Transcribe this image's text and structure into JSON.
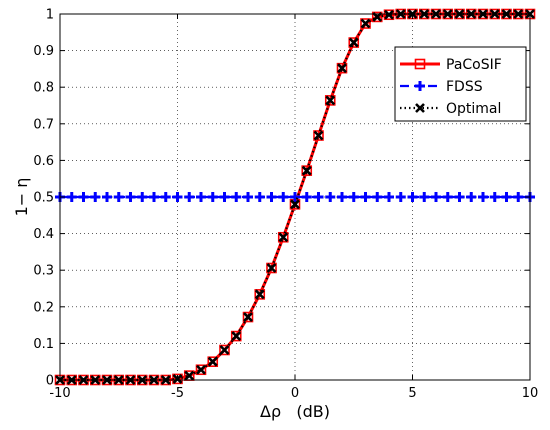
{
  "chart_data": {
    "type": "line",
    "title": "",
    "xlabel": "Δρ   (dB)",
    "ylabel": "1− η",
    "xlim": [
      -10,
      10
    ],
    "ylim": [
      0,
      1
    ],
    "x_ticks": [
      -10,
      -5,
      0,
      5,
      10
    ],
    "y_ticks": [
      0,
      0.1,
      0.2,
      0.3,
      0.4,
      0.5,
      0.6,
      0.7,
      0.8,
      0.9,
      1
    ],
    "grid": true,
    "grid_style": "dotted",
    "legend_position": "top-right",
    "x": [
      -10,
      -9.5,
      -9,
      -8.5,
      -8,
      -7.5,
      -7,
      -6.5,
      -6,
      -5.5,
      -5,
      -4.5,
      -4,
      -3.5,
      -3,
      -2.5,
      -2,
      -1.5,
      -1,
      -0.5,
      0,
      0.5,
      1,
      1.5,
      2,
      2.5,
      3,
      3.5,
      4,
      4.5,
      5,
      5.5,
      6,
      6.5,
      7,
      7.5,
      8,
      8.5,
      9,
      9.5,
      10
    ],
    "series": [
      {
        "name": "PaCoSIF",
        "color": "#ff0000",
        "line_style": "solid",
        "marker": "square",
        "values": [
          0,
          0,
          0,
          0,
          0,
          0,
          0,
          0,
          0,
          0,
          0.003,
          0.012,
          0.028,
          0.05,
          0.082,
          0.12,
          0.172,
          0.234,
          0.306,
          0.39,
          0.48,
          0.572,
          0.668,
          0.764,
          0.852,
          0.922,
          0.974,
          0.992,
          0.998,
          1,
          1,
          1,
          1,
          1,
          1,
          1,
          1,
          1,
          1,
          1,
          1
        ]
      },
      {
        "name": "FDSS",
        "color": "#0000ff",
        "line_style": "dashed",
        "marker": "plus",
        "values": [
          0.5,
          0.5,
          0.5,
          0.5,
          0.5,
          0.5,
          0.5,
          0.5,
          0.5,
          0.5,
          0.5,
          0.5,
          0.5,
          0.5,
          0.5,
          0.5,
          0.5,
          0.5,
          0.5,
          0.5,
          0.5,
          0.5,
          0.5,
          0.5,
          0.5,
          0.5,
          0.5,
          0.5,
          0.5,
          0.5,
          0.5,
          0.5,
          0.5,
          0.5,
          0.5,
          0.5,
          0.5,
          0.5,
          0.5,
          0.5,
          0.5
        ]
      },
      {
        "name": "Optimal",
        "color": "#000000",
        "line_style": "dotted",
        "marker": "x",
        "values": [
          0,
          0,
          0,
          0,
          0,
          0,
          0,
          0,
          0,
          0,
          0.003,
          0.012,
          0.028,
          0.05,
          0.082,
          0.12,
          0.172,
          0.234,
          0.306,
          0.39,
          0.48,
          0.572,
          0.668,
          0.764,
          0.852,
          0.922,
          0.974,
          0.992,
          0.998,
          1,
          1,
          1,
          1,
          1,
          1,
          1,
          1,
          1,
          1,
          1,
          1
        ]
      }
    ]
  }
}
